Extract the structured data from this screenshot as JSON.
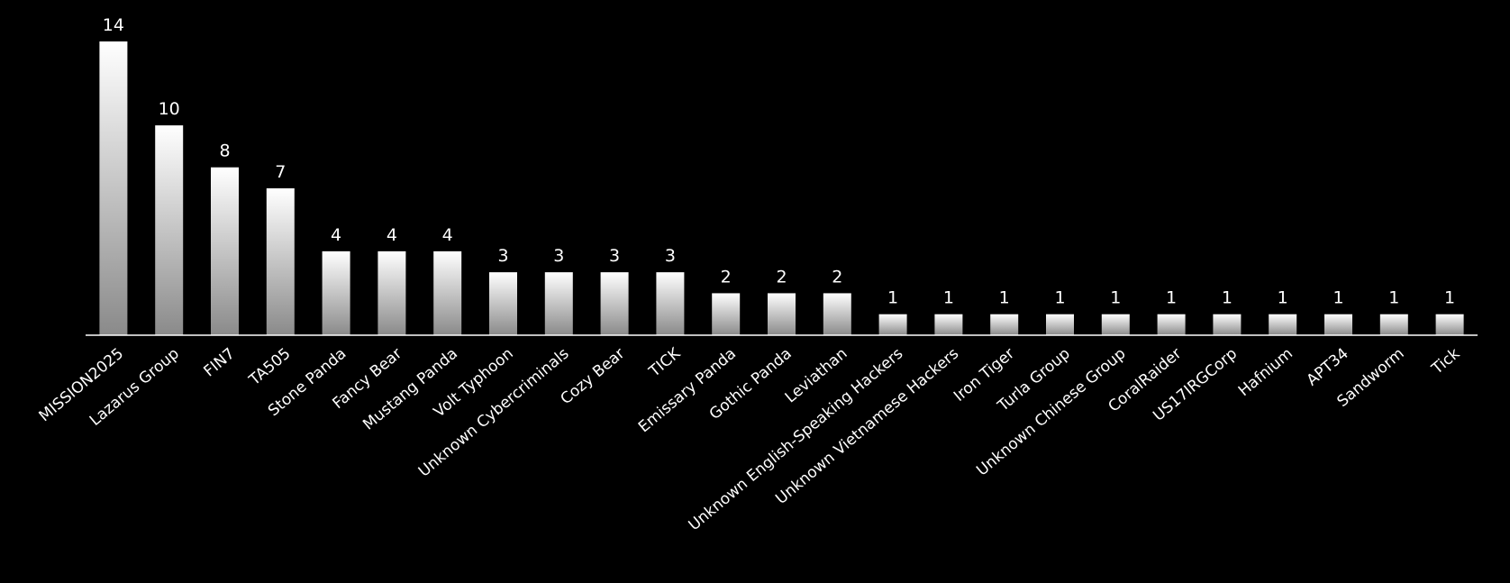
{
  "chart_data": {
    "type": "bar",
    "categories": [
      "MISSION2025",
      "Lazarus Group",
      "FIN7",
      "TA505",
      "Stone Panda",
      "Fancy Bear",
      "Mustang Panda",
      "Volt Typhoon",
      "Unknown Cybercriminals",
      "Cozy Bear",
      "TICK",
      "Emissary Panda",
      "Gothic Panda",
      "Leviathan",
      "Unknown English-Speaking Hackers",
      "Unknown Vietnamese Hackers",
      "Iron Tiger",
      "Turla Group",
      "Unknown Chinese Group",
      "CoralRaider",
      "US17IRGCorp",
      "Hafnium",
      "APT34",
      "Sandworm",
      "Tick"
    ],
    "values": [
      14,
      10,
      8,
      7,
      4,
      4,
      4,
      3,
      3,
      3,
      3,
      2,
      2,
      2,
      1,
      1,
      1,
      1,
      1,
      1,
      1,
      1,
      1,
      1,
      1
    ],
    "color": "#ffffff"
  }
}
